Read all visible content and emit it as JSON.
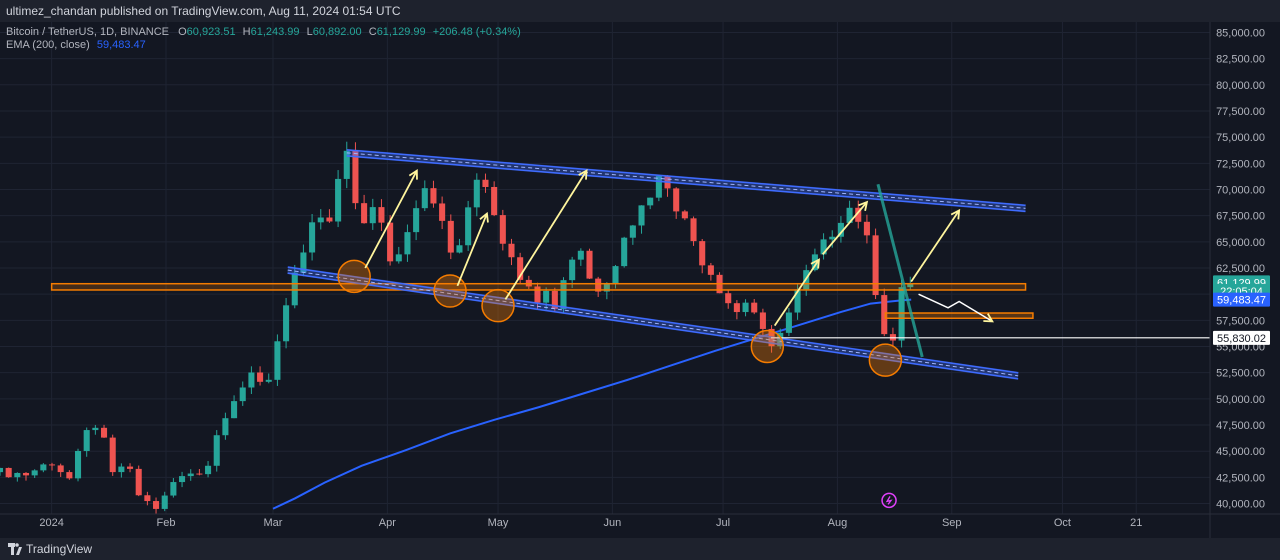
{
  "header": {
    "text": "ultimez_chandan published on TradingView.com, Aug 11, 2024 01:54 UTC"
  },
  "legend": {
    "symbol": "Bitcoin / TetherUS, 1D, BINANCE",
    "open_label": "O",
    "open": "60,923.51",
    "high_label": "H",
    "high": "61,243.99",
    "low_label": "L",
    "low": "60,892.00",
    "close_label": "C",
    "close": "61,129.99",
    "change": "+206.48 (+0.34%)",
    "ema_label": "EMA (200, close)",
    "ema_value": "59,483.47"
  },
  "footer": {
    "brand": "TradingView"
  },
  "colors": {
    "background": "#131722",
    "grid": "#1f2433",
    "up": "#26a69a",
    "down": "#ef5350",
    "ema": "#2962ff",
    "channel": "#3f6cff",
    "zone": "#f57c00",
    "arrow": "#fff59d"
  },
  "chart_data": {
    "type": "candlestick",
    "y_axis": {
      "min": 39000,
      "max": 86000,
      "side": "right",
      "ticks": [
        "85,000.00",
        "82,500.00",
        "80,000.00",
        "77,500.00",
        "75,000.00",
        "72,500.00",
        "70,000.00",
        "67,500.00",
        "65,000.00",
        "62,500.00",
        "60,000.00",
        "57,500.00",
        "55,000.00",
        "52,500.00",
        "50,000.00",
        "47,500.00",
        "45,000.00",
        "42,500.00",
        "40,000.00"
      ],
      "tick_values": [
        85000,
        82500,
        80000,
        77500,
        75000,
        72500,
        70000,
        67500,
        65000,
        62500,
        60000,
        57500,
        55000,
        52500,
        50000,
        47500,
        45000,
        42500,
        40000
      ]
    },
    "x_axis": {
      "labels": [
        "2024",
        "Feb",
        "Mar",
        "Apr",
        "May",
        "Jun",
        "Jul",
        "Aug",
        "Sep",
        "Oct",
        "21"
      ],
      "label_days": [
        0,
        31,
        60,
        91,
        121,
        152,
        182,
        213,
        244,
        274,
        294
      ],
      "range_days": [
        -14,
        314
      ]
    },
    "price_labels": [
      {
        "text": "61,129.99",
        "value": 61129.99,
        "color": "#26a69a"
      },
      {
        "text": "22:05:04",
        "value": 60300,
        "color": "#26a69a"
      },
      {
        "text": "59,483.47",
        "value": 59483.47,
        "color": "#2962ff"
      },
      {
        "text": "55,830.02",
        "value": 55830.02,
        "color": "#ffffff"
      }
    ],
    "keypoints": [
      [
        -14,
        43000
      ],
      [
        -7,
        42800
      ],
      [
        0,
        44000
      ],
      [
        5,
        42300
      ],
      [
        9,
        46500
      ],
      [
        13,
        48000
      ],
      [
        16,
        42500
      ],
      [
        20,
        44000
      ],
      [
        24,
        40500
      ],
      [
        29,
        39500
      ],
      [
        33,
        42000
      ],
      [
        38,
        43000
      ],
      [
        42,
        43300
      ],
      [
        46,
        48000
      ],
      [
        50,
        50500
      ],
      [
        54,
        52000
      ],
      [
        58,
        51000
      ],
      [
        60,
        53500
      ],
      [
        62,
        57000
      ],
      [
        65,
        61500
      ],
      [
        68,
        63000
      ],
      [
        72,
        68000
      ],
      [
        75,
        66000
      ],
      [
        78,
        71500
      ],
      [
        80,
        73000
      ],
      [
        82,
        69000
      ],
      [
        85,
        67000
      ],
      [
        88,
        68500
      ],
      [
        91,
        64000
      ],
      [
        93,
        62500
      ],
      [
        96,
        66000
      ],
      [
        99,
        69000
      ],
      [
        102,
        71000
      ],
      [
        105,
        67500
      ],
      [
        109,
        63000
      ],
      [
        112,
        66500
      ],
      [
        116,
        72000
      ],
      [
        119,
        69500
      ],
      [
        121,
        66000
      ],
      [
        125,
        63800
      ],
      [
        128,
        61000
      ],
      [
        131,
        59500
      ],
      [
        134,
        60900
      ],
      [
        137,
        58700
      ],
      [
        140,
        63000
      ],
      [
        143,
        64800
      ],
      [
        146,
        61500
      ],
      [
        149,
        60000
      ],
      [
        152,
        62000
      ],
      [
        155,
        66000
      ],
      [
        158,
        67200
      ],
      [
        161,
        69000
      ],
      [
        164,
        70800
      ],
      [
        166,
        71400
      ],
      [
        170,
        68000
      ],
      [
        173,
        66000
      ],
      [
        176,
        63500
      ],
      [
        179,
        62000
      ],
      [
        182,
        60000
      ],
      [
        185,
        58500
      ],
      [
        187,
        58000
      ],
      [
        189,
        60500
      ],
      [
        191,
        57500
      ],
      [
        193,
        56000
      ],
      [
        195,
        54500
      ],
      [
        197,
        56500
      ],
      [
        199,
        57500
      ],
      [
        202,
        60000
      ],
      [
        206,
        63000
      ],
      [
        210,
        65000
      ],
      [
        214,
        67500
      ],
      [
        217,
        68500
      ],
      [
        219,
        67000
      ],
      [
        221,
        65000
      ],
      [
        223,
        61000
      ],
      [
        225,
        58000
      ],
      [
        227,
        54000
      ],
      [
        229,
        57000
      ],
      [
        231,
        61500
      ],
      [
        233,
        61130
      ]
    ],
    "ema": {
      "name": "EMA (200, close)",
      "points": [
        [
          60,
          39500
        ],
        [
          66,
          40500
        ],
        [
          74,
          42000
        ],
        [
          84,
          43600
        ],
        [
          96,
          45100
        ],
        [
          108,
          46700
        ],
        [
          120,
          48000
        ],
        [
          132,
          49200
        ],
        [
          144,
          50500
        ],
        [
          156,
          51800
        ],
        [
          168,
          53200
        ],
        [
          180,
          54600
        ],
        [
          192,
          55900
        ],
        [
          204,
          57200
        ],
        [
          214,
          58300
        ],
        [
          222,
          59100
        ],
        [
          230,
          59400
        ],
        [
          233,
          59483
        ]
      ]
    },
    "annotations": {
      "upper_channel": [
        [
          80,
          73500
        ],
        [
          264,
          68200
        ]
      ],
      "lower_channel": [
        [
          64,
          62300
        ],
        [
          262,
          52200
        ]
      ],
      "support_zone": {
        "from_day": 0,
        "to_day": 264,
        "low": 60400,
        "high": 61000
      },
      "lower_zone": {
        "from_day": 226,
        "to_day": 266,
        "low": 57700,
        "high": 58200
      },
      "horizontal_line": {
        "from_day": 195,
        "to_day": 330,
        "value": 55830
      },
      "circles": [
        [
          82,
          61700
        ],
        [
          108,
          60300
        ],
        [
          121,
          58900
        ],
        [
          194,
          55000
        ],
        [
          226,
          53700
        ]
      ],
      "arrows": [
        [
          [
            85,
            62500
          ],
          [
            99,
            71800
          ]
        ],
        [
          [
            110,
            60800
          ],
          [
            118,
            67700
          ]
        ],
        [
          [
            123,
            59500
          ],
          [
            145,
            71800
          ]
        ],
        [
          [
            196,
            57000
          ],
          [
            208,
            63300
          ]
        ],
        [
          [
            209,
            63800
          ],
          [
            221,
            68800
          ]
        ],
        [
          [
            233,
            61200
          ],
          [
            246,
            68000
          ]
        ]
      ],
      "zigzag_arrow": [
        [
          235,
          60000
        ],
        [
          243,
          58700
        ],
        [
          246,
          59300
        ],
        [
          255,
          57400
        ]
      ],
      "steep_line": [
        [
          224,
          70500
        ],
        [
          236,
          54000
        ]
      ]
    }
  }
}
